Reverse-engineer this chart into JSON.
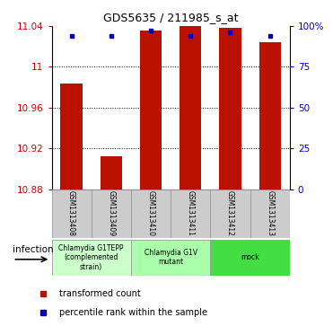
{
  "title": "GDS5635 / 211985_s_at",
  "samples": [
    "GSM1313408",
    "GSM1313409",
    "GSM1313410",
    "GSM1313411",
    "GSM1313412",
    "GSM1313413"
  ],
  "red_values": [
    10.984,
    10.912,
    11.036,
    11.044,
    11.038,
    11.024
  ],
  "blue_values": [
    94,
    94,
    97,
    94,
    96,
    94
  ],
  "ylim_left": [
    10.88,
    11.04
  ],
  "ylim_right": [
    0,
    100
  ],
  "yticks_left": [
    10.88,
    10.92,
    10.96,
    11.0,
    11.04
  ],
  "ytick_labels_left": [
    "10.88",
    "10.92",
    "10.96",
    "11",
    "11.04"
  ],
  "yticks_right": [
    0,
    25,
    50,
    75,
    100
  ],
  "ytick_labels_right": [
    "0",
    "25",
    "50",
    "75",
    "100%"
  ],
  "group_labels": [
    "Chlamydia G1TEPP\n(complemented\nstrain)",
    "Chlamydia G1V\nmutant",
    "mock"
  ],
  "group_colors": [
    "#ccffcc",
    "#aaffaa",
    "#55cc55"
  ],
  "group_ranges": [
    [
      0,
      2
    ],
    [
      2,
      4
    ],
    [
      4,
      6
    ]
  ],
  "bar_color": "#bb1100",
  "dot_color": "#0000bb",
  "background_color": "#ffffff",
  "sample_box_color": "#cccccc",
  "infection_label": "infection",
  "legend_red": "transformed count",
  "legend_blue": "percentile rank within the sample",
  "axis_color_left": "#cc0000",
  "axis_color_right": "#0000cc",
  "grid_yticks": [
    11.0,
    10.96,
    10.92
  ]
}
